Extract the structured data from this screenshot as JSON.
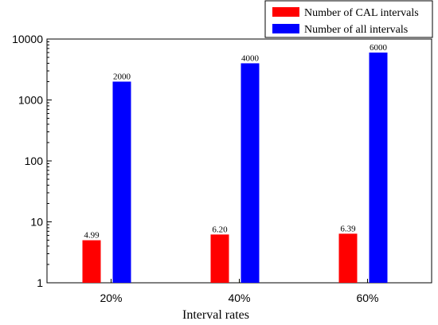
{
  "chart_data": {
    "type": "bar",
    "scale": "log",
    "categories": [
      "20%",
      "40%",
      "60%"
    ],
    "series": [
      {
        "name": "Number of CAL intervals",
        "color": "#ff0000",
        "values": [
          4.99,
          6.2,
          6.39
        ],
        "labels": [
          "4.99",
          "6.20",
          "6.39"
        ]
      },
      {
        "name": "Number of all intervals",
        "color": "#0000ff",
        "values": [
          2000,
          4000,
          6000
        ],
        "labels": [
          "2000",
          "4000",
          "6000"
        ]
      }
    ],
    "xlabel": "Interval rates",
    "ylabel": "",
    "ylim": [
      1,
      10000
    ],
    "yticks": [
      1,
      10,
      100,
      1000,
      10000
    ],
    "ytick_labels": [
      "1",
      "10",
      "100",
      "1000",
      "10000"
    ],
    "legend_position": "top-right",
    "grid": false
  }
}
